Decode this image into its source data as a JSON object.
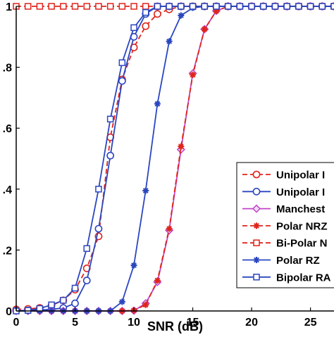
{
  "chart_data": {
    "type": "line",
    "xlabel": "SNR (dB)",
    "ylabel": "",
    "xlim": [
      0,
      27
    ],
    "ylim": [
      0,
      1
    ],
    "x_ticks": [
      0,
      5,
      10,
      15,
      20,
      25
    ],
    "x_tick_labels": [
      "0",
      "5",
      "10",
      "15",
      "20",
      "25"
    ],
    "y_ticks": [
      0,
      0.2,
      0.4,
      0.6,
      0.8,
      1
    ],
    "y_tick_labels": [
      "0",
      ".2",
      ".4",
      ".6",
      ".8",
      "1"
    ],
    "grid": false,
    "legend_position": "bottom-right",
    "x": [
      0,
      1,
      2,
      3,
      4,
      5,
      6,
      7,
      8,
      9,
      10,
      11,
      12,
      13,
      14,
      15,
      16,
      17,
      18,
      19,
      20,
      21,
      22,
      23,
      24,
      25,
      26,
      27
    ],
    "series": [
      {
        "name": "Unipolar I",
        "color": "#e0241b",
        "line": "dashed",
        "marker": "circle",
        "values": [
          0.005,
          0.007,
          0.01,
          0.018,
          0.035,
          0.07,
          0.14,
          0.245,
          0.57,
          0.76,
          0.865,
          0.935,
          0.975,
          0.99,
          1,
          1,
          1,
          1,
          1,
          1,
          1,
          1,
          1,
          1,
          1,
          1,
          1,
          1
        ]
      },
      {
        "name": "Unipolar I",
        "color": "#2b46c0",
        "line": "solid",
        "marker": "circle",
        "values": [
          0.001,
          0.002,
          0.003,
          0.005,
          0.01,
          0.025,
          0.1,
          0.27,
          0.51,
          0.755,
          0.9,
          0.975,
          1,
          1,
          1,
          1,
          1,
          1,
          1,
          1,
          1,
          1,
          1,
          1,
          1,
          1,
          1,
          1
        ]
      },
      {
        "name": "Manchest",
        "color": "#c043c8",
        "line": "solid",
        "marker": "diamond",
        "values": [
          0,
          0,
          0,
          0,
          0,
          0,
          0,
          0,
          0,
          0,
          0.001,
          0.025,
          0.095,
          0.265,
          0.53,
          0.78,
          0.925,
          0.985,
          1,
          1,
          1,
          1,
          1,
          1,
          1,
          1,
          1,
          1
        ]
      },
      {
        "name": "Polar NRZ",
        "color": "#e0241b",
        "line": "dashed",
        "marker": "star",
        "values": [
          0,
          0,
          0,
          0,
          0,
          0,
          0,
          0,
          0,
          0,
          0.002,
          0.02,
          0.1,
          0.27,
          0.54,
          0.775,
          0.925,
          0.985,
          1,
          1,
          1,
          1,
          1,
          1,
          1,
          1,
          1,
          1
        ]
      },
      {
        "name": "Bi-Polar N",
        "color": "#e0241b",
        "line": "dashed",
        "marker": "square",
        "values": [
          1,
          1,
          1,
          1,
          1,
          1,
          1,
          1,
          1,
          1,
          1,
          1,
          1,
          1,
          1,
          1,
          1,
          1,
          1,
          1,
          1,
          1,
          1,
          1,
          1,
          1,
          1,
          1
        ]
      },
      {
        "name": "Polar RZ",
        "color": "#2b46c0",
        "line": "solid",
        "marker": "star",
        "values": [
          0,
          0,
          0,
          0,
          0,
          0,
          0,
          0,
          0,
          0.03,
          0.15,
          0.395,
          0.68,
          0.885,
          0.97,
          0.995,
          1,
          1,
          1,
          1,
          1,
          1,
          1,
          1,
          1,
          1,
          1,
          1
        ]
      },
      {
        "name": "Bipolar RA",
        "color": "#2b46c0",
        "line": "solid",
        "marker": "square",
        "values": [
          0,
          0.002,
          0.008,
          0.02,
          0.035,
          0.075,
          0.205,
          0.4,
          0.63,
          0.815,
          0.93,
          0.98,
          1,
          1,
          1,
          1,
          1,
          1,
          1,
          1,
          1,
          1,
          1,
          1,
          1,
          1,
          1,
          1
        ]
      }
    ]
  }
}
